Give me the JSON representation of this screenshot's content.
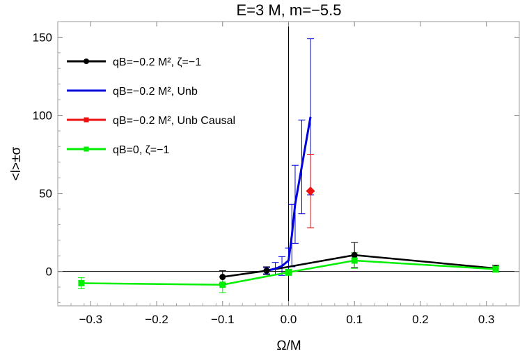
{
  "chart_data": {
    "type": "line",
    "title": "E=3 M, m=−5.5",
    "xlabel": "Ω/M",
    "ylabel": "<l>±σ",
    "xlim": [
      -0.35,
      0.35
    ],
    "ylim": [
      -22,
      160
    ],
    "xticks": [
      -0.3,
      -0.2,
      -0.1,
      0.0,
      0.1,
      0.2,
      0.3
    ],
    "xtick_labels": [
      "−0.3",
      "−0.2",
      "−0.1",
      "0.0",
      "0.1",
      "0.2",
      "0.3"
    ],
    "yticks": [
      0,
      50,
      100,
      150
    ],
    "ytick_labels": [
      "0",
      "50",
      "100",
      "150"
    ],
    "grid": false,
    "legend_position": "top-left",
    "series": [
      {
        "name": "qB=−0.2 M², ζ=−1",
        "color": "#000000",
        "marker": "circle",
        "x": [
          -0.1,
          -0.0333,
          0.1,
          0.3142
        ],
        "y": [
          -3.5,
          0.5,
          10.5,
          2.0
        ],
        "err": [
          4.0,
          2.5,
          8.0,
          2.0
        ]
      },
      {
        "name": "qB=−0.2 M², Unb",
        "color": "#0000dd",
        "marker": "none",
        "x": [
          -0.0333,
          -0.02,
          -0.01,
          0.0,
          0.005,
          0.01,
          0.02,
          0.0333
        ],
        "y": [
          0.5,
          1.8,
          3.5,
          7.0,
          23.0,
          43.0,
          67.0,
          99.0
        ],
        "err": [
          2.0,
          4.0,
          6.0,
          8.0,
          20.0,
          25.0,
          30.0,
          50.0
        ]
      },
      {
        "name": "qB=−0.2 M², Unb Causal",
        "color": "#ee1111",
        "marker": "diamond",
        "x": [
          0.0333
        ],
        "y": [
          51.5
        ],
        "err": [
          23.5
        ]
      },
      {
        "name": "qB=0, ζ=−1",
        "color": "#00ee00",
        "marker": "square",
        "x": [
          -0.3142,
          -0.1,
          0.0,
          0.1,
          0.3142
        ],
        "y": [
          -7.5,
          -8.5,
          -0.5,
          7.0,
          1.5
        ],
        "err": [
          3.5,
          5.0,
          2.0,
          5.0,
          2.0
        ]
      }
    ]
  }
}
